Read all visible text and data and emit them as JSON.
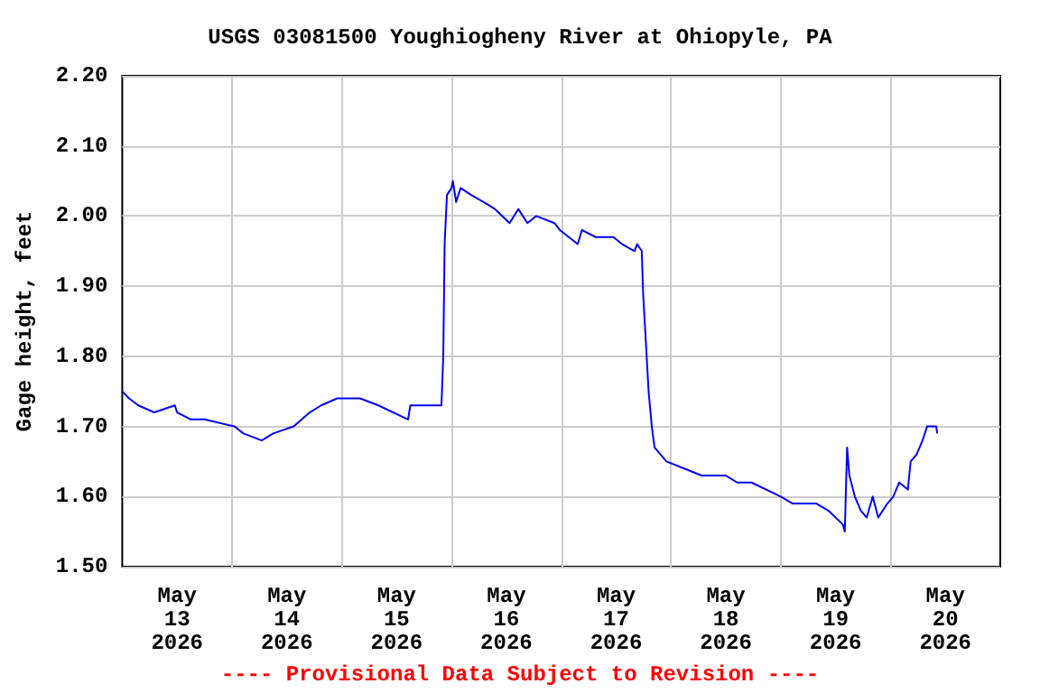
{
  "chart_data": {
    "type": "line",
    "title": "USGS 03081500 Youghiogheny River at Ohiopyle, PA",
    "ylabel": "Gage height, feet",
    "annotations": [
      "---- Provisional Data Subject to Revision ----"
    ],
    "x": [
      "2026-05-13T00:00",
      "2026-05-13T01:30",
      "2026-05-13T03:30",
      "2026-05-13T07:00",
      "2026-05-13T11:30",
      "2026-05-13T12:00",
      "2026-05-13T15:00",
      "2026-05-13T18:00",
      "2026-05-14T00:30",
      "2026-05-14T02:30",
      "2026-05-14T06:30",
      "2026-05-14T09:00",
      "2026-05-14T13:30",
      "2026-05-14T17:00",
      "2026-05-14T19:30",
      "2026-05-14T23:00",
      "2026-05-15T04:00",
      "2026-05-15T08:00",
      "2026-05-15T14:30",
      "2026-05-15T15:00",
      "2026-05-15T21:48",
      "2026-05-15T22:12",
      "2026-05-15T22:30",
      "2026-05-15T23:00",
      "2026-05-16T00:00",
      "2026-05-16T00:18",
      "2026-05-16T01:00",
      "2026-05-16T02:00",
      "2026-05-16T04:18",
      "2026-05-16T07:00",
      "2026-05-16T09:30",
      "2026-05-16T12:42",
      "2026-05-16T14:36",
      "2026-05-16T16:36",
      "2026-05-16T18:30",
      "2026-05-16T22:30",
      "2026-05-16T23:42",
      "2026-05-17T03:36",
      "2026-05-17T04:30",
      "2026-05-17T07:30",
      "2026-05-17T11:24",
      "2026-05-17T13:18",
      "2026-05-17T16:00",
      "2026-05-17T16:36",
      "2026-05-17T17:36",
      "2026-05-17T17:54",
      "2026-05-17T18:30",
      "2026-05-17T19:06",
      "2026-05-17T19:48",
      "2026-05-17T20:24",
      "2026-05-17T21:42",
      "2026-05-17T23:00",
      "2026-05-18T02:54",
      "2026-05-18T06:42",
      "2026-05-18T11:54",
      "2026-05-18T14:30",
      "2026-05-18T17:36",
      "2026-05-19T00:00",
      "2026-05-19T02:36",
      "2026-05-19T07:48",
      "2026-05-19T10:24",
      "2026-05-19T13:36",
      "2026-05-19T14:00",
      "2026-05-19T14:30",
      "2026-05-19T15:00",
      "2026-05-19T16:12",
      "2026-05-19T17:30",
      "2026-05-19T18:48",
      "2026-05-19T20:06",
      "2026-05-19T21:18",
      "2026-05-19T23:18",
      "2026-05-20T00:36",
      "2026-05-20T01:54",
      "2026-05-20T03:48",
      "2026-05-20T04:24",
      "2026-05-20T05:42",
      "2026-05-20T07:00",
      "2026-05-20T08:00",
      "2026-05-20T10:00",
      "2026-05-20T10:12"
    ],
    "series": [
      {
        "color": "#0000ff",
        "values": [
          1.75,
          1.74,
          1.73,
          1.72,
          1.73,
          1.72,
          1.71,
          1.71,
          1.7,
          1.69,
          1.68,
          1.69,
          1.7,
          1.72,
          1.73,
          1.74,
          1.74,
          1.73,
          1.71,
          1.73,
          1.73,
          1.8,
          1.96,
          2.03,
          2.04,
          2.05,
          2.02,
          2.04,
          2.03,
          2.02,
          2.01,
          1.99,
          2.01,
          1.99,
          2.0,
          1.99,
          1.98,
          1.96,
          1.98,
          1.97,
          1.97,
          1.96,
          1.95,
          1.96,
          1.95,
          1.89,
          1.82,
          1.75,
          1.7,
          1.67,
          1.66,
          1.65,
          1.64,
          1.63,
          1.63,
          1.62,
          1.62,
          1.6,
          1.59,
          1.59,
          1.58,
          1.56,
          1.55,
          1.67,
          1.63,
          1.6,
          1.58,
          1.57,
          1.6,
          1.57,
          1.59,
          1.6,
          1.62,
          1.61,
          1.65,
          1.66,
          1.68,
          1.7,
          1.7,
          1.69
        ]
      }
    ],
    "xlim": [
      "2026-05-13T00:00",
      "2026-05-21T00:00"
    ],
    "xticks": [
      {
        "value": "2026-05-13T12:00",
        "label": "May\n13\n2026"
      },
      {
        "value": "2026-05-14T12:00",
        "label": "May\n14\n2026"
      },
      {
        "value": "2026-05-15T12:00",
        "label": "May\n15\n2026"
      },
      {
        "value": "2026-05-16T12:00",
        "label": "May\n16\n2026"
      },
      {
        "value": "2026-05-17T12:00",
        "label": "May\n17\n2026"
      },
      {
        "value": "2026-05-18T12:00",
        "label": "May\n18\n2026"
      },
      {
        "value": "2026-05-19T12:00",
        "label": "May\n19\n2026"
      },
      {
        "value": "2026-05-20T12:00",
        "label": "May\n20\n2026"
      },
      {
        "value": "2026-05-14T00:00",
        "label": null
      },
      {
        "value": "2026-05-15T00:00",
        "label": null
      },
      {
        "value": "2026-05-16T00:00",
        "label": null
      },
      {
        "value": "2026-05-17T00:00",
        "label": null
      },
      {
        "value": "2026-05-18T00:00",
        "label": null
      },
      {
        "value": "2026-05-19T00:00",
        "label": null
      },
      {
        "value": "2026-05-20T00:00",
        "label": null
      }
    ],
    "ylim": [
      1.5,
      2.2
    ],
    "yticks": [
      {
        "value": 1.5,
        "label": "1.50"
      },
      {
        "value": 1.6,
        "label": "1.60"
      },
      {
        "value": 1.7,
        "label": "1.70"
      },
      {
        "value": 1.8,
        "label": "1.80"
      },
      {
        "value": 1.9,
        "label": "1.90"
      },
      {
        "value": 2.0,
        "label": "2.00"
      },
      {
        "value": 2.1,
        "label": "2.10"
      },
      {
        "value": 2.2,
        "label": "2.20"
      }
    ],
    "grid": true,
    "marker": "none",
    "line_style": "solid"
  }
}
